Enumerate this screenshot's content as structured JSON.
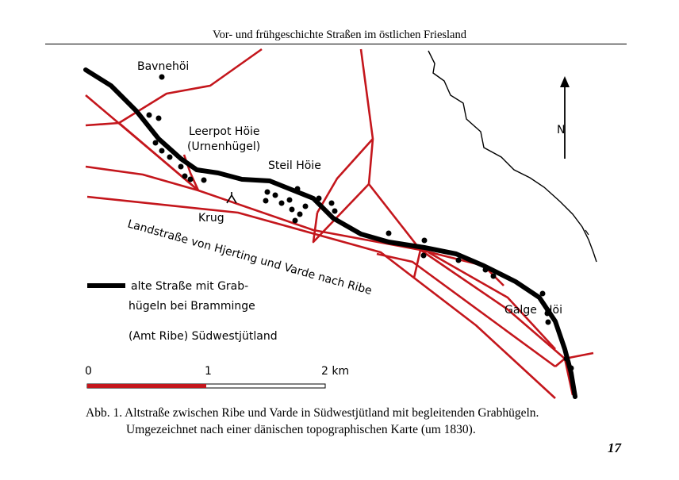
{
  "header": {
    "running_title": "Vor- und frühgeschichte Straßen im östlichen Friesland"
  },
  "map": {
    "colors": {
      "roads": "#c4161c",
      "ancient_road": "#000000",
      "coast": "#000000"
    },
    "place_labels": {
      "bavnehoi": "Bavnehöi",
      "leerpot_hoie": "Leerpot Höie",
      "urnenhugel": "(Urnenhügel)",
      "steil_hoie": "Steil Höie",
      "krug": "Krug",
      "galge": "Galge",
      "hoi": "Höi"
    },
    "road_label": "Landstraße von Hjerting und Varde nach Ribe",
    "north_label": "N",
    "legend": {
      "line1": "alte Straße mit Grab-",
      "line2": "hügeln bei Bramminge",
      "line3": "(Amt Ribe) Südwestjütland"
    },
    "scale": {
      "tick_0": "0",
      "tick_1": "1",
      "tick_2": "2 km"
    }
  },
  "caption": {
    "line1": "Abb. 1. Altstraße zwischen Ribe und Varde in Südwestjütland mit begleitenden Grabhügeln.",
    "line2": "Umgezeichnet nach einer dänischen topographischen Karte (um 1830)."
  },
  "page_number": "17"
}
